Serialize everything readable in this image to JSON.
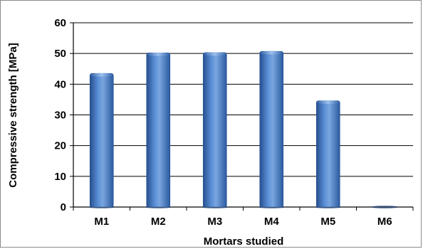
{
  "chart_data": {
    "type": "bar",
    "title": "",
    "xlabel": "Mortars studied",
    "ylabel": "Compressive  strength [MPa]",
    "categories": [
      "M1",
      "M2",
      "M3",
      "M4",
      "M5",
      "M6"
    ],
    "values": [
      43.5,
      50.2,
      50.3,
      50.7,
      34.6,
      0
    ],
    "ylim": [
      0,
      60
    ],
    "yticks": [
      0,
      10,
      20,
      30,
      40,
      50,
      60
    ],
    "grid": true,
    "legend": "none",
    "bar_color": "#4a7cc4",
    "bar_color_dark": "#26508f",
    "bar_color_light": "#7aa6df"
  }
}
